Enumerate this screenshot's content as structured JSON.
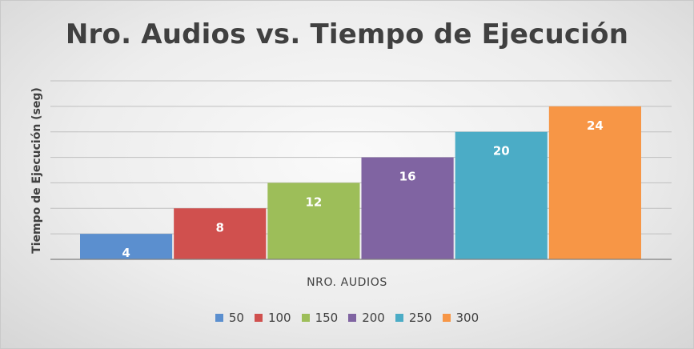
{
  "chart_data": {
    "type": "bar",
    "title": "Nro. Audios vs. Tiempo de Ejecución",
    "xlabel": "NRO. AUDIOS",
    "ylabel": "Tiempo de Ejecución (seg)",
    "ylim": [
      0,
      28
    ],
    "y_gridline_step": 4,
    "grid": true,
    "y_tick_labels_visible": false,
    "legend_position": "bottom",
    "categories": [
      "50",
      "100",
      "150",
      "200",
      "250",
      "300"
    ],
    "values": [
      4,
      8,
      12,
      16,
      20,
      24
    ],
    "colors": [
      "#5b8fcf",
      "#d0504e",
      "#9dbe59",
      "#8064a2",
      "#4bacc6",
      "#f79646"
    ]
  }
}
